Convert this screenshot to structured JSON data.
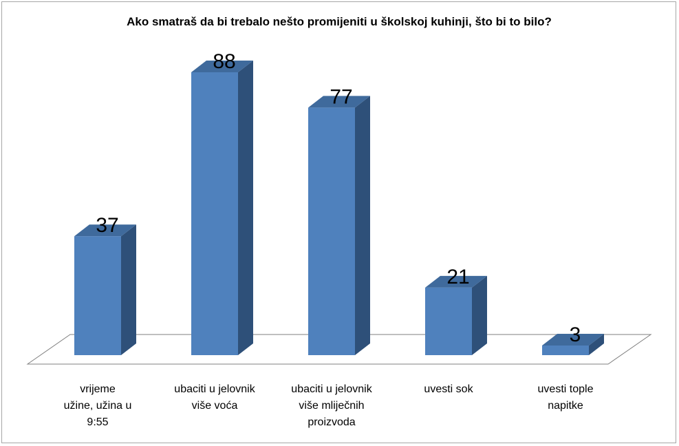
{
  "chart_data": {
    "type": "bar",
    "title": "Ako smatraš da bi trebalo nešto promijeniti u školskoj kuhinji, što bi to bilo?",
    "categories": [
      [
        "vrijeme",
        "užine, užina  u",
        "9:55"
      ],
      [
        "ubaciti u jelovnik",
        "više voća"
      ],
      [
        "ubaciti u jelovnik",
        "više mliječnih",
        "proizvoda"
      ],
      [
        "uvesti sok"
      ],
      [
        "uvesti tople",
        "napitke"
      ]
    ],
    "values": [
      37,
      88,
      77,
      21,
      3
    ],
    "ylim": [
      0,
      88
    ],
    "grid": false,
    "legend": "none",
    "three_d": true,
    "colors": {
      "bar_front": "#4f81bd",
      "bar_side": "#2e5079",
      "bar_top": "#3f6a9c",
      "floor_stroke": "#7f7f7f"
    }
  }
}
